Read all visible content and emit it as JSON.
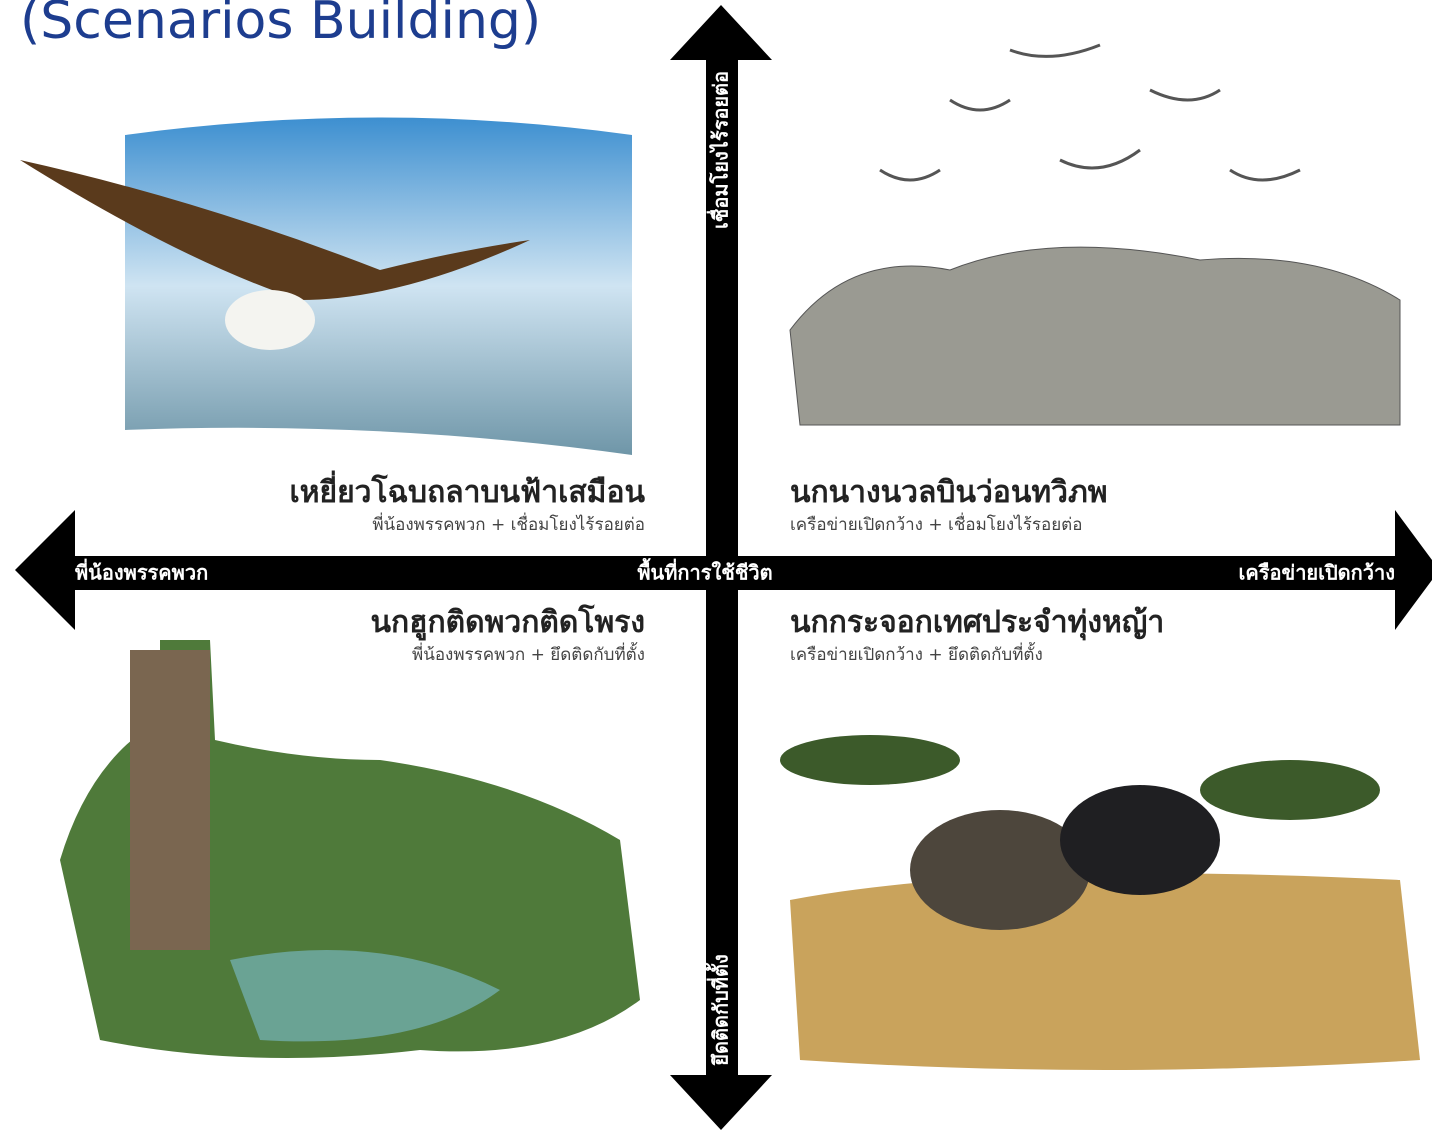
{
  "title": "(Scenarios Building)",
  "axes": {
    "top": "เชื่อมโยงไร้รอยต่อ",
    "bottom": "ยึดติดกับที่ตั้ง",
    "left": "พี่น้องพรรคพวก",
    "right": "เครือข่ายเปิดกว้าง",
    "center": "พื้นที่การใช้ชีวิต"
  },
  "quadrants": [
    {
      "title": "เหยี่ยวโฉบถลาบนฟ้าเสมือน",
      "subtitle": "พี่น้องพรรคพวก + เชื่อมโยงไร้รอยต่อ"
    },
    {
      "title": "นกนางนวลบินว่อนทวิภพ",
      "subtitle": "เครือข่ายเปิดกว้าง + เชื่อมโยงไร้รอยต่อ"
    },
    {
      "title": "นกฮูกติดพวกติดโพรง",
      "subtitle": "พี่น้องพรรคพวก + ยึดติดกับที่ตั้ง"
    },
    {
      "title": "นกกระจอกเทศประจำทุ่งหญ้า",
      "subtitle": "เครือข่ายเปิดกว้าง + ยึดติดกับที่ตั้ง"
    }
  ]
}
